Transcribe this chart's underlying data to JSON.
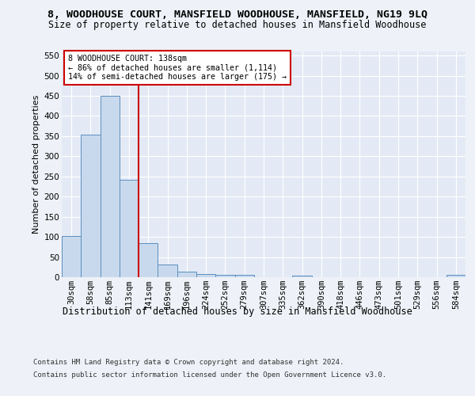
{
  "title1": "8, WOODHOUSE COURT, MANSFIELD WOODHOUSE, MANSFIELD, NG19 9LQ",
  "title2": "Size of property relative to detached houses in Mansfield Woodhouse",
  "xlabel": "Distribution of detached houses by size in Mansfield Woodhouse",
  "ylabel": "Number of detached properties",
  "footer1": "Contains HM Land Registry data © Crown copyright and database right 2024.",
  "footer2": "Contains public sector information licensed under the Open Government Licence v3.0.",
  "annotation_title": "8 WOODHOUSE COURT: 138sqm",
  "annotation_line1": "← 86% of detached houses are smaller (1,114)",
  "annotation_line2": "14% of semi-detached houses are larger (175) →",
  "bar_labels": [
    "30sqm",
    "58sqm",
    "85sqm",
    "113sqm",
    "141sqm",
    "169sqm",
    "196sqm",
    "224sqm",
    "252sqm",
    "279sqm",
    "307sqm",
    "335sqm",
    "362sqm",
    "390sqm",
    "418sqm",
    "446sqm",
    "473sqm",
    "501sqm",
    "529sqm",
    "556sqm",
    "584sqm"
  ],
  "bar_values": [
    102,
    354,
    450,
    242,
    85,
    31,
    13,
    7,
    5,
    5,
    0,
    0,
    4,
    0,
    0,
    0,
    0,
    0,
    0,
    0,
    5
  ],
  "bar_color": "#c9d9ed",
  "bar_edge_color": "#5a8fc0",
  "vline_color": "#cc0000",
  "vline_x_index": 4,
  "annotation_box_color": "#cc0000",
  "ylim": [
    0,
    560
  ],
  "yticks": [
    0,
    50,
    100,
    150,
    200,
    250,
    300,
    350,
    400,
    450,
    500,
    550
  ],
  "bg_color": "#eef2f8",
  "plot_bg_color": "#e4eaf5",
  "grid_color": "#ffffff",
  "title1_fontsize": 9.5,
  "title2_fontsize": 8.5,
  "xlabel_fontsize": 8.5,
  "ylabel_fontsize": 8,
  "tick_fontsize": 7.5,
  "footer_fontsize": 6.5
}
